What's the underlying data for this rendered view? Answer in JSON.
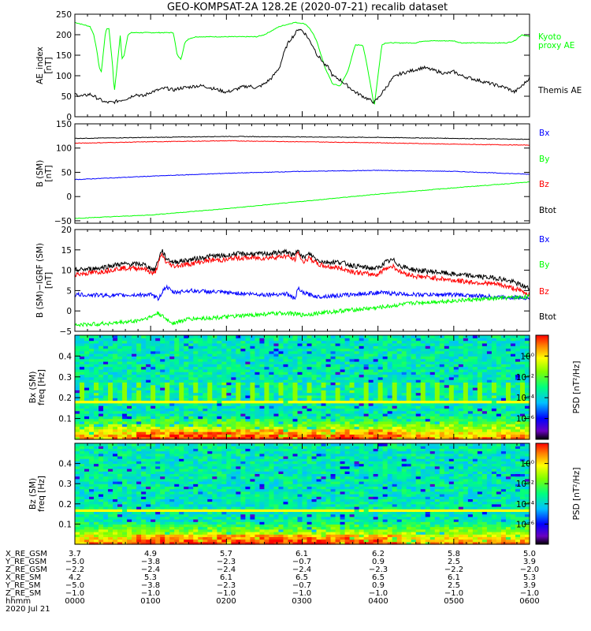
{
  "chart_data": [
    {
      "type": "line",
      "title": "GEO-KOMPSAT-2A 128.2E (2020-07-21) recalib dataset",
      "ylabel": "AE_index [nT]",
      "ylim": [
        0,
        250
      ],
      "yticks": [
        0,
        50,
        100,
        150,
        200,
        250
      ],
      "xlim": [
        0,
        6
      ],
      "series": [
        {
          "name": "Kyoto proxy AE",
          "color": "#00ff00",
          "x": [
            0,
            0.1,
            0.2,
            0.25,
            0.3,
            0.32,
            0.35,
            0.4,
            0.42,
            0.45,
            0.5,
            0.52,
            0.55,
            0.6,
            0.62,
            0.65,
            0.7,
            0.75,
            1.0,
            1.3,
            1.35,
            1.4,
            1.45,
            1.5,
            1.6,
            1.8,
            2.0,
            2.2,
            2.4,
            2.5,
            2.6,
            2.7,
            2.8,
            2.9,
            3.0,
            3.05,
            3.1,
            3.15,
            3.2,
            3.3,
            3.4,
            3.5,
            3.6,
            3.7,
            3.8,
            3.85,
            3.9,
            3.95,
            4.0,
            4.05,
            4.1,
            4.2,
            4.3,
            4.4,
            4.5,
            4.6,
            4.7,
            4.8,
            4.9,
            5.0,
            5.1,
            5.2,
            5.5,
            5.7,
            5.8,
            5.9,
            6.0
          ],
          "y": [
            230,
            225,
            220,
            200,
            150,
            120,
            110,
            200,
            215,
            215,
            120,
            60,
            110,
            200,
            140,
            150,
            200,
            205,
            205,
            205,
            150,
            140,
            180,
            190,
            195,
            195,
            195,
            195,
            195,
            200,
            210,
            220,
            225,
            230,
            228,
            225,
            215,
            200,
            180,
            120,
            80,
            75,
            110,
            175,
            175,
            130,
            80,
            25,
            100,
            175,
            180,
            180,
            180,
            180,
            180,
            185,
            185,
            185,
            185,
            185,
            180,
            180,
            180,
            180,
            185,
            200,
            195
          ]
        },
        {
          "name": "Themis AE",
          "color": "#000000",
          "x": [
            0,
            0.1,
            0.2,
            0.3,
            0.4,
            0.5,
            0.6,
            0.7,
            0.8,
            0.9,
            1.0,
            1.1,
            1.2,
            1.3,
            1.4,
            1.5,
            1.6,
            1.7,
            1.8,
            1.9,
            2.0,
            2.1,
            2.2,
            2.3,
            2.4,
            2.5,
            2.6,
            2.7,
            2.75,
            2.8,
            2.85,
            2.9,
            2.95,
            3.0,
            3.05,
            3.1,
            3.15,
            3.2,
            3.25,
            3.3,
            3.35,
            3.4,
            3.5,
            3.6,
            3.7,
            3.8,
            3.85,
            3.9,
            3.95,
            4.0,
            4.1,
            4.2,
            4.3,
            4.4,
            4.5,
            4.6,
            4.7,
            4.8,
            4.9,
            5.0,
            5.1,
            5.2,
            5.3,
            5.4,
            5.5,
            5.6,
            5.7,
            5.8,
            5.9,
            6.0
          ],
          "y": [
            55,
            50,
            55,
            45,
            35,
            35,
            40,
            45,
            55,
            50,
            60,
            65,
            70,
            65,
            70,
            72,
            75,
            75,
            70,
            65,
            60,
            65,
            72,
            75,
            70,
            80,
            95,
            120,
            150,
            175,
            190,
            200,
            215,
            210,
            200,
            185,
            170,
            150,
            140,
            125,
            120,
            100,
            90,
            75,
            60,
            50,
            45,
            40,
            35,
            45,
            70,
            95,
            105,
            110,
            115,
            120,
            115,
            110,
            105,
            110,
            100,
            95,
            90,
            85,
            80,
            75,
            70,
            60,
            75,
            95
          ]
        }
      ],
      "legend": [
        {
          "label": "Kyoto",
          "color": "#00ff00"
        },
        {
          "label": "proxy AE",
          "color": "#00ff00"
        },
        {
          "label": "Themis AE",
          "color": "#000000"
        }
      ]
    },
    {
      "type": "line",
      "ylabel": "B (SM) [nT]",
      "ylim": [
        -55,
        150
      ],
      "yticks": [
        -50,
        0,
        50,
        100,
        150
      ],
      "xlim": [
        0,
        6
      ],
      "series": [
        {
          "name": "Btot",
          "color": "#000000",
          "x": [
            0,
            1,
            2,
            3,
            4,
            5,
            6
          ],
          "y": [
            120,
            122,
            124,
            123,
            122,
            120,
            118
          ]
        },
        {
          "name": "Bz",
          "color": "#ff0000",
          "x": [
            0,
            1,
            2,
            3,
            4,
            5,
            6
          ],
          "y": [
            110,
            113,
            115,
            113,
            111,
            108,
            106
          ]
        },
        {
          "name": "Bx",
          "color": "#0000ff",
          "x": [
            0,
            1,
            2,
            3,
            4,
            5,
            6
          ],
          "y": [
            35,
            42,
            48,
            52,
            54,
            52,
            46
          ]
        },
        {
          "name": "By",
          "color": "#00ff00",
          "x": [
            0,
            1,
            2,
            3,
            4,
            5,
            6
          ],
          "y": [
            -45,
            -38,
            -25,
            -10,
            5,
            18,
            30
          ]
        }
      ],
      "legend": [
        {
          "label": "Bx",
          "color": "#0000ff"
        },
        {
          "label": "By",
          "color": "#00ff00"
        },
        {
          "label": "Bz",
          "color": "#ff0000"
        },
        {
          "label": "Btot",
          "color": "#000000"
        }
      ]
    },
    {
      "type": "line",
      "ylabel": "B (SM)-IGRF (SM) [nT]",
      "ylim": [
        -5,
        20
      ],
      "yticks": [
        -5,
        0,
        5,
        10,
        15,
        20
      ],
      "xlim": [
        0,
        6
      ],
      "series": [
        {
          "name": "Btot",
          "color": "#000000",
          "x": [
            0,
            0.3,
            0.6,
            0.9,
            1.0,
            1.05,
            1.1,
            1.15,
            1.2,
            1.3,
            1.5,
            1.8,
            2.0,
            2.1,
            2.5,
            2.8,
            2.9,
            2.95,
            3.0,
            3.1,
            3.2,
            3.3,
            3.5,
            3.7,
            3.9,
            4.0,
            4.1,
            4.2,
            4.3,
            4.5,
            4.8,
            5.0,
            5.3,
            5.6,
            5.8,
            6.0
          ],
          "y": [
            10,
            10.5,
            11.5,
            11.5,
            10.5,
            10,
            12.5,
            15,
            13,
            12,
            12.5,
            13.5,
            13.5,
            14,
            14,
            14.5,
            13.5,
            15.5,
            13,
            14,
            12.5,
            12,
            12,
            11,
            10.5,
            10.5,
            12,
            12.5,
            11,
            10,
            9.5,
            9,
            8.5,
            8,
            7,
            5.5
          ]
        },
        {
          "name": "Bz",
          "color": "#ff0000",
          "x": [
            0,
            0.3,
            0.6,
            0.9,
            1.0,
            1.05,
            1.1,
            1.15,
            1.2,
            1.3,
            1.5,
            1.8,
            2.0,
            2.1,
            2.5,
            2.8,
            2.9,
            2.95,
            3.0,
            3.1,
            3.2,
            3.3,
            3.5,
            3.7,
            3.9,
            4.0,
            4.1,
            4.2,
            4.3,
            4.5,
            4.8,
            5.0,
            5.3,
            5.6,
            5.8,
            6.0
          ],
          "y": [
            9,
            9.5,
            10.5,
            10.5,
            9.5,
            9,
            11.5,
            14,
            12,
            11,
            11.5,
            12.5,
            12.5,
            13,
            13,
            13.5,
            12.5,
            14.5,
            12,
            13,
            11.5,
            11,
            10.5,
            9.5,
            9,
            9,
            10.5,
            11,
            9.5,
            8.5,
            8,
            7.5,
            7,
            6.5,
            5.5,
            4
          ]
        },
        {
          "name": "Bx",
          "color": "#0000ff",
          "x": [
            0,
            0.5,
            1.0,
            1.1,
            1.2,
            1.3,
            1.5,
            2.0,
            2.5,
            2.8,
            2.9,
            2.95,
            3.0,
            3.2,
            3.5,
            4.0,
            4.5,
            5.0,
            5.5,
            6.0
          ],
          "y": [
            4,
            3.8,
            4,
            3,
            6,
            4.5,
            5,
            4.5,
            4,
            4.2,
            3,
            5.5,
            4.5,
            3.5,
            3.8,
            4.5,
            4,
            4,
            3.5,
            3.2
          ]
        },
        {
          "name": "By",
          "color": "#00ff00",
          "x": [
            0,
            0.5,
            0.8,
            1.0,
            1.1,
            1.2,
            1.3,
            1.5,
            2.0,
            2.5,
            2.8,
            3.0,
            3.5,
            4.0,
            4.5,
            5.0,
            5.5,
            6.0
          ],
          "y": [
            -3.5,
            -3,
            -2.5,
            -1.5,
            -0.5,
            -2,
            -3,
            -2,
            -1.5,
            -0.8,
            -0.5,
            -1,
            0,
            0.8,
            2,
            2.5,
            3,
            3.5
          ]
        }
      ],
      "legend": [
        {
          "label": "Bx",
          "color": "#0000ff"
        },
        {
          "label": "By",
          "color": "#00ff00"
        },
        {
          "label": "Bz",
          "color": "#ff0000"
        },
        {
          "label": "Btot",
          "color": "#000000"
        }
      ]
    },
    {
      "type": "heatmap",
      "ylabel": "Bx (SM) freq [Hz]",
      "ylim": [
        0,
        0.5
      ],
      "yticks": [
        0.1,
        0.2,
        0.3,
        0.4
      ],
      "xlim": [
        0,
        6
      ],
      "colorbar": {
        "label": "PSD [nT²/Hz]",
        "range_exp": [
          -8,
          2
        ],
        "ticks": [
          "10⁰",
          "10⁻²",
          "10⁻⁴",
          "10⁻⁶"
        ]
      }
    },
    {
      "type": "heatmap",
      "ylabel": "Bz (SM) freq [Hz]",
      "ylim": [
        0,
        0.5
      ],
      "yticks": [
        0.1,
        0.2,
        0.3,
        0.4
      ],
      "xlim": [
        0,
        6
      ],
      "colorbar": {
        "label": "PSD [nT²/Hz]",
        "range_exp": [
          -8,
          2
        ],
        "ticks": [
          "10⁰",
          "10⁻²",
          "10⁻⁴",
          "10⁻⁶"
        ]
      }
    }
  ],
  "orbit": {
    "rows": [
      {
        "label": "X_RE_GSM",
        "values": [
          "3.7",
          "4.9",
          "5.7",
          "6.1",
          "6.2",
          "5.8",
          "5.0"
        ]
      },
      {
        "label": "Y_RE_GSM",
        "values": [
          "−5.0",
          "−3.8",
          "−2.3",
          "−0.7",
          "0.9",
          "2.5",
          "3.9"
        ]
      },
      {
        "label": "Z_RE_GSM",
        "values": [
          "−2.2",
          "−2.4",
          "−2.4",
          "−2.4",
          "−2.3",
          "−2.2",
          "−2.0"
        ]
      },
      {
        "label": "X_RE_SM",
        "values": [
          "4.2",
          "5.3",
          "6.1",
          "6.5",
          "6.5",
          "6.1",
          "5.3"
        ]
      },
      {
        "label": "Y_RE_SM",
        "values": [
          "−5.0",
          "−3.8",
          "−2.3",
          "−0.7",
          "0.9",
          "2.5",
          "3.9"
        ]
      },
      {
        "label": "Z_RE_SM",
        "values": [
          "−1.0",
          "−1.0",
          "−1.0",
          "−1.0",
          "−1.0",
          "−1.0",
          "−1.0"
        ]
      },
      {
        "label": "hhmm",
        "values": [
          "0000",
          "0100",
          "0200",
          "0300",
          "0400",
          "0500",
          "0600"
        ]
      }
    ],
    "date": "2020 Jul 21"
  },
  "colors": {
    "kyoto": "#00ff00",
    "themis": "#000000",
    "bx": "#0000ff",
    "by": "#00ff00",
    "bz": "#ff0000",
    "btot": "#000000"
  }
}
